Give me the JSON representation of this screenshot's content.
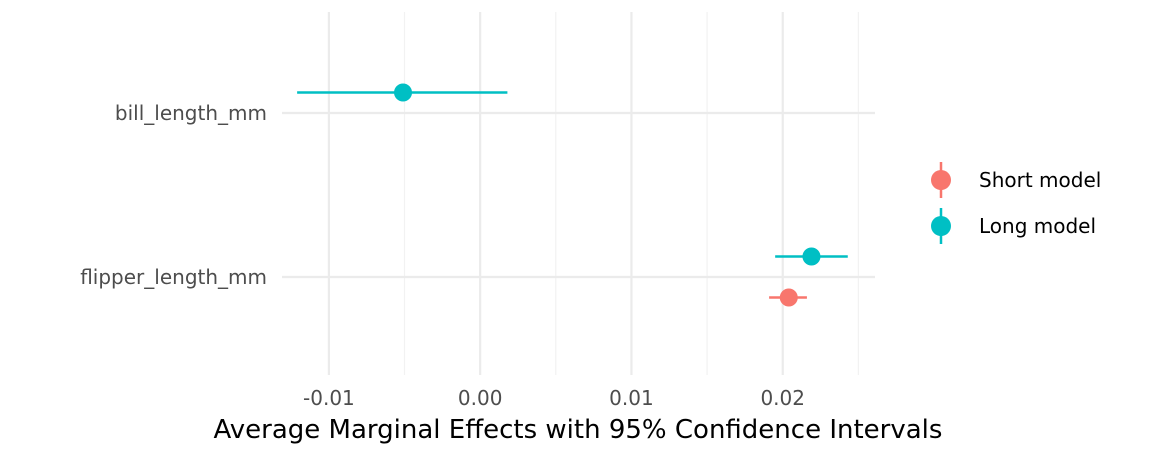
{
  "chart_data": {
    "type": "scatter",
    "subtype": "coefficient-plot-with-error-bars",
    "title": "",
    "xlabel": "Average Marginal Effects with 95% Confidence Intervals",
    "ylabel": "",
    "xlim": [
      -0.0131,
      0.0261
    ],
    "x_ticks": [
      -0.01,
      0.0,
      0.01,
      0.02
    ],
    "x_tick_labels": [
      "-0.01",
      "0.00",
      "0.01",
      "0.02"
    ],
    "categories": [
      "bill_length_mm",
      "flipper_length_mm"
    ],
    "grid": true,
    "legend_position": "right",
    "series": [
      {
        "name": "Short model",
        "color": "#F8766D",
        "points": [
          {
            "category": "flipper_length_mm",
            "estimate": 0.0204,
            "ci_low": 0.0191,
            "ci_high": 0.0216
          }
        ]
      },
      {
        "name": "Long model",
        "color": "#00BFC4",
        "points": [
          {
            "category": "bill_length_mm",
            "estimate": -0.0051,
            "ci_low": -0.0121,
            "ci_high": 0.0018
          },
          {
            "category": "flipper_length_mm",
            "estimate": 0.0219,
            "ci_low": 0.0195,
            "ci_high": 0.0243
          }
        ]
      }
    ]
  }
}
